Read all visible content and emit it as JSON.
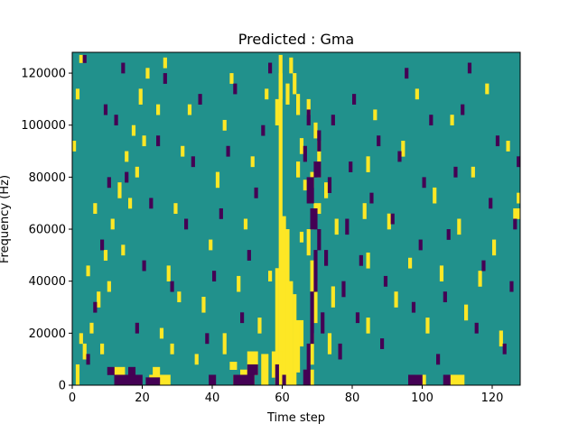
{
  "chart_data": {
    "type": "heatmap",
    "title": "Predicted : Gma",
    "xlabel": "Time step",
    "ylabel": "Frequency (Hz)",
    "xlim": [
      0,
      128
    ],
    "ylim": [
      0,
      128000
    ],
    "x_ticks": [
      0,
      20,
      40,
      60,
      80,
      100,
      120
    ],
    "y_ticks": [
      0,
      20000,
      40000,
      60000,
      80000,
      100000,
      120000
    ],
    "x_tick_labels": [
      "0",
      "20",
      "40",
      "60",
      "80",
      "100",
      "120"
    ],
    "y_tick_labels": [
      "0",
      "20000",
      "40000",
      "60000",
      "80000",
      "100000",
      "120000"
    ],
    "colormap": "viridis",
    "value_levels": [
      -1,
      0,
      1
    ],
    "level_colors": [
      "#440154",
      "#21918c",
      "#fde725"
    ],
    "background_value": 0,
    "rows": 128,
    "columns": 128,
    "grid": false,
    "legend": "none",
    "cells": [
      [
        58,
        0,
        1,
        45,
        1
      ],
      [
        59,
        0,
        1,
        127,
        1
      ],
      [
        60,
        0,
        1,
        65,
        1
      ],
      [
        61,
        0,
        1,
        60,
        1
      ],
      [
        62,
        0,
        1,
        40,
        1
      ],
      [
        63,
        0,
        1,
        35,
        1
      ],
      [
        57,
        3,
        1,
        10,
        1
      ],
      [
        64,
        5,
        1,
        20,
        1
      ],
      [
        58,
        1,
        1,
        4,
        1
      ],
      [
        65,
        15,
        1,
        10,
        1
      ],
      [
        60,
        44,
        1,
        6,
        1
      ],
      [
        59,
        8,
        1,
        5,
        1
      ],
      [
        64,
        80,
        1,
        6,
        1
      ],
      [
        66,
        75,
        1,
        4,
        1
      ],
      [
        65,
        89,
        1,
        6,
        1
      ],
      [
        64,
        104,
        1,
        8,
        1
      ],
      [
        63,
        112,
        1,
        8,
        1
      ],
      [
        62,
        120,
        1,
        6,
        1
      ],
      [
        58,
        100,
        1,
        10,
        1
      ],
      [
        59,
        110,
        1,
        10,
        1
      ],
      [
        61,
        108,
        1,
        8,
        1
      ],
      [
        65,
        55,
        1,
        4,
        1
      ],
      [
        56,
        40,
        1,
        4,
        1
      ],
      [
        22,
        0,
        6,
        4,
        1
      ],
      [
        23,
        4,
        2,
        3,
        1
      ],
      [
        48,
        0,
        2,
        6,
        1
      ],
      [
        108,
        0,
        4,
        4,
        1
      ],
      [
        45,
        6,
        2,
        3,
        1
      ],
      [
        54,
        0,
        2,
        12,
        1
      ],
      [
        43,
        12,
        1,
        8,
        1
      ],
      [
        13,
        0,
        5,
        4,
        1
      ],
      [
        12,
        4,
        3,
        3,
        1
      ],
      [
        46,
        0,
        6,
        4,
        1
      ],
      [
        50,
        4,
        3,
        9,
        1
      ],
      [
        98,
        0,
        3,
        4,
        1
      ],
      [
        67,
        0,
        2,
        6,
        1
      ],
      [
        68,
        8,
        1,
        12,
        1
      ],
      [
        69,
        24,
        1,
        16,
        1
      ],
      [
        68,
        36,
        1,
        12,
        1
      ],
      [
        67,
        50,
        1,
        10,
        1
      ],
      [
        68,
        60,
        1,
        8,
        1
      ],
      [
        69,
        66,
        2,
        4,
        1
      ],
      [
        70,
        80,
        1,
        14,
        1
      ],
      [
        68,
        76,
        1,
        6,
        1
      ],
      [
        69,
        95,
        1,
        6,
        1
      ],
      [
        67,
        104,
        1,
        6,
        1
      ],
      [
        72,
        72,
        1,
        6,
        1
      ],
      [
        73,
        12,
        1,
        8,
        1
      ],
      [
        74,
        30,
        1,
        8,
        1
      ],
      [
        75,
        58,
        1,
        6,
        1
      ],
      [
        84,
        20,
        1,
        6,
        1
      ],
      [
        84,
        45,
        1,
        6,
        1
      ],
      [
        83,
        64,
        1,
        6,
        1
      ],
      [
        84,
        82,
        1,
        6,
        1
      ],
      [
        86,
        102,
        1,
        4,
        1
      ],
      [
        90,
        60,
        1,
        6,
        1
      ],
      [
        92,
        30,
        1,
        6,
        1
      ],
      [
        94,
        88,
        1,
        6,
        1
      ],
      [
        96,
        45,
        1,
        4,
        1
      ],
      [
        98,
        110,
        1,
        4,
        1
      ],
      [
        101,
        20,
        1,
        6,
        1
      ],
      [
        103,
        70,
        1,
        6,
        1
      ],
      [
        105,
        40,
        1,
        6,
        1
      ],
      [
        108,
        100,
        1,
        4,
        1
      ],
      [
        110,
        58,
        1,
        6,
        1
      ],
      [
        112,
        25,
        1,
        6,
        1
      ],
      [
        114,
        80,
        1,
        4,
        1
      ],
      [
        116,
        38,
        1,
        6,
        1
      ],
      [
        118,
        112,
        1,
        4,
        1
      ],
      [
        120,
        50,
        1,
        6,
        1
      ],
      [
        122,
        15,
        1,
        6,
        1
      ],
      [
        124,
        90,
        1,
        4,
        1
      ],
      [
        126,
        64,
        2,
        4,
        1
      ],
      [
        127,
        70,
        1,
        4,
        1
      ],
      [
        3,
        10,
        1,
        6,
        1
      ],
      [
        5,
        20,
        1,
        4,
        1
      ],
      [
        7,
        30,
        1,
        6,
        1
      ],
      [
        9,
        48,
        1,
        4,
        1
      ],
      [
        11,
        60,
        1,
        4,
        1
      ],
      [
        13,
        72,
        1,
        6,
        1
      ],
      [
        15,
        86,
        1,
        4,
        1
      ],
      [
        17,
        96,
        1,
        4,
        1
      ],
      [
        19,
        108,
        1,
        6,
        1
      ],
      [
        21,
        118,
        1,
        4,
        1
      ],
      [
        25,
        18,
        1,
        4,
        1
      ],
      [
        27,
        40,
        1,
        6,
        1
      ],
      [
        29,
        66,
        1,
        4,
        1
      ],
      [
        31,
        88,
        1,
        4,
        1
      ],
      [
        33,
        104,
        1,
        4,
        1
      ],
      [
        35,
        8,
        1,
        4,
        1
      ],
      [
        37,
        28,
        1,
        6,
        1
      ],
      [
        39,
        52,
        1,
        4,
        1
      ],
      [
        41,
        76,
        1,
        6,
        1
      ],
      [
        43,
        98,
        1,
        4,
        1
      ],
      [
        45,
        116,
        1,
        4,
        1
      ],
      [
        47,
        36,
        1,
        6,
        1
      ],
      [
        49,
        60,
        1,
        4,
        1
      ],
      [
        51,
        84,
        1,
        4,
        1
      ],
      [
        53,
        20,
        1,
        6,
        1
      ],
      [
        55,
        110,
        1,
        4,
        1
      ],
      [
        8,
        12,
        1,
        4,
        1
      ],
      [
        10,
        36,
        1,
        4,
        1
      ],
      [
        14,
        50,
        1,
        4,
        1
      ],
      [
        16,
        68,
        1,
        4,
        1
      ],
      [
        18,
        80,
        1,
        4,
        1
      ],
      [
        20,
        92,
        1,
        4,
        1
      ],
      [
        24,
        104,
        1,
        4,
        1
      ],
      [
        26,
        122,
        1,
        4,
        1
      ],
      [
        28,
        12,
        1,
        4,
        1
      ],
      [
        30,
        32,
        1,
        4,
        1
      ],
      [
        1,
        0,
        1,
        8,
        1
      ],
      [
        2,
        16,
        1,
        4,
        1
      ],
      [
        4,
        42,
        1,
        4,
        1
      ],
      [
        6,
        66,
        1,
        4,
        1
      ],
      [
        0,
        90,
        1,
        4,
        1
      ],
      [
        1,
        110,
        1,
        4,
        1
      ],
      [
        2,
        124,
        1,
        3,
        1
      ],
      [
        58,
        0,
        1,
        8,
        -1
      ],
      [
        60,
        0,
        1,
        4,
        -1
      ],
      [
        12,
        0,
        8,
        4,
        -1
      ],
      [
        21,
        0,
        4,
        3,
        -1
      ],
      [
        46,
        0,
        6,
        4,
        -1
      ],
      [
        50,
        4,
        3,
        4,
        -1
      ],
      [
        96,
        0,
        4,
        4,
        -1
      ],
      [
        106,
        0,
        2,
        4,
        -1
      ],
      [
        39,
        0,
        2,
        4,
        -1
      ],
      [
        10,
        4,
        2,
        3,
        -1
      ],
      [
        16,
        4,
        2,
        3,
        -1
      ],
      [
        66,
        0,
        2,
        6,
        -1
      ],
      [
        67,
        6,
        1,
        10,
        -1
      ],
      [
        68,
        16,
        1,
        20,
        -1
      ],
      [
        69,
        36,
        1,
        16,
        -1
      ],
      [
        70,
        52,
        1,
        8,
        -1
      ],
      [
        68,
        60,
        2,
        8,
        -1
      ],
      [
        67,
        70,
        2,
        10,
        -1
      ],
      [
        69,
        80,
        2,
        6,
        -1
      ],
      [
        70,
        90,
        1,
        8,
        -1
      ],
      [
        67,
        100,
        1,
        6,
        -1
      ],
      [
        66,
        86,
        1,
        6,
        -1
      ],
      [
        71,
        20,
        1,
        8,
        -1
      ],
      [
        72,
        46,
        1,
        6,
        -1
      ],
      [
        73,
        74,
        1,
        6,
        -1
      ],
      [
        74,
        100,
        1,
        4,
        -1
      ],
      [
        76,
        10,
        1,
        6,
        -1
      ],
      [
        77,
        34,
        1,
        6,
        -1
      ],
      [
        78,
        58,
        1,
        6,
        -1
      ],
      [
        79,
        82,
        1,
        4,
        -1
      ],
      [
        80,
        108,
        1,
        4,
        -1
      ],
      [
        81,
        24,
        1,
        4,
        -1
      ],
      [
        82,
        46,
        1,
        4,
        -1
      ],
      [
        85,
        70,
        1,
        4,
        -1
      ],
      [
        87,
        92,
        1,
        4,
        -1
      ],
      [
        88,
        14,
        1,
        4,
        -1
      ],
      [
        89,
        38,
        1,
        4,
        -1
      ],
      [
        91,
        62,
        1,
        4,
        -1
      ],
      [
        93,
        86,
        1,
        4,
        -1
      ],
      [
        95,
        118,
        1,
        4,
        -1
      ],
      [
        97,
        28,
        1,
        4,
        -1
      ],
      [
        99,
        52,
        1,
        4,
        -1
      ],
      [
        100,
        76,
        1,
        4,
        -1
      ],
      [
        102,
        100,
        1,
        4,
        -1
      ],
      [
        104,
        8,
        1,
        4,
        -1
      ],
      [
        106,
        32,
        1,
        4,
        -1
      ],
      [
        107,
        56,
        1,
        4,
        -1
      ],
      [
        109,
        80,
        1,
        4,
        -1
      ],
      [
        111,
        104,
        1,
        4,
        -1
      ],
      [
        113,
        120,
        1,
        4,
        -1
      ],
      [
        115,
        20,
        1,
        4,
        -1
      ],
      [
        117,
        44,
        1,
        4,
        -1
      ],
      [
        119,
        68,
        1,
        4,
        -1
      ],
      [
        121,
        92,
        1,
        4,
        -1
      ],
      [
        123,
        12,
        1,
        4,
        -1
      ],
      [
        125,
        36,
        1,
        4,
        -1
      ],
      [
        126,
        60,
        1,
        4,
        -1
      ],
      [
        127,
        84,
        1,
        4,
        -1
      ],
      [
        4,
        8,
        1,
        4,
        -1
      ],
      [
        6,
        28,
        1,
        4,
        -1
      ],
      [
        8,
        52,
        1,
        4,
        -1
      ],
      [
        10,
        76,
        1,
        4,
        -1
      ],
      [
        12,
        100,
        1,
        4,
        -1
      ],
      [
        14,
        120,
        1,
        4,
        -1
      ],
      [
        18,
        20,
        1,
        4,
        -1
      ],
      [
        20,
        44,
        1,
        4,
        -1
      ],
      [
        22,
        68,
        1,
        4,
        -1
      ],
      [
        24,
        92,
        1,
        4,
        -1
      ],
      [
        26,
        116,
        1,
        4,
        -1
      ],
      [
        28,
        36,
        1,
        4,
        -1
      ],
      [
        32,
        60,
        1,
        4,
        -1
      ],
      [
        34,
        84,
        1,
        4,
        -1
      ],
      [
        36,
        108,
        1,
        4,
        -1
      ],
      [
        38,
        16,
        1,
        4,
        -1
      ],
      [
        40,
        40,
        1,
        4,
        -1
      ],
      [
        42,
        64,
        1,
        4,
        -1
      ],
      [
        44,
        88,
        1,
        4,
        -1
      ],
      [
        46,
        112,
        1,
        4,
        -1
      ],
      [
        48,
        24,
        1,
        4,
        -1
      ],
      [
        50,
        48,
        1,
        4,
        -1
      ],
      [
        52,
        72,
        1,
        4,
        -1
      ],
      [
        54,
        96,
        1,
        4,
        -1
      ],
      [
        56,
        120,
        1,
        4,
        -1
      ],
      [
        3,
        124,
        1,
        3,
        -1
      ],
      [
        9,
        104,
        1,
        4,
        -1
      ],
      [
        15,
        78,
        1,
        4,
        -1
      ]
    ]
  }
}
